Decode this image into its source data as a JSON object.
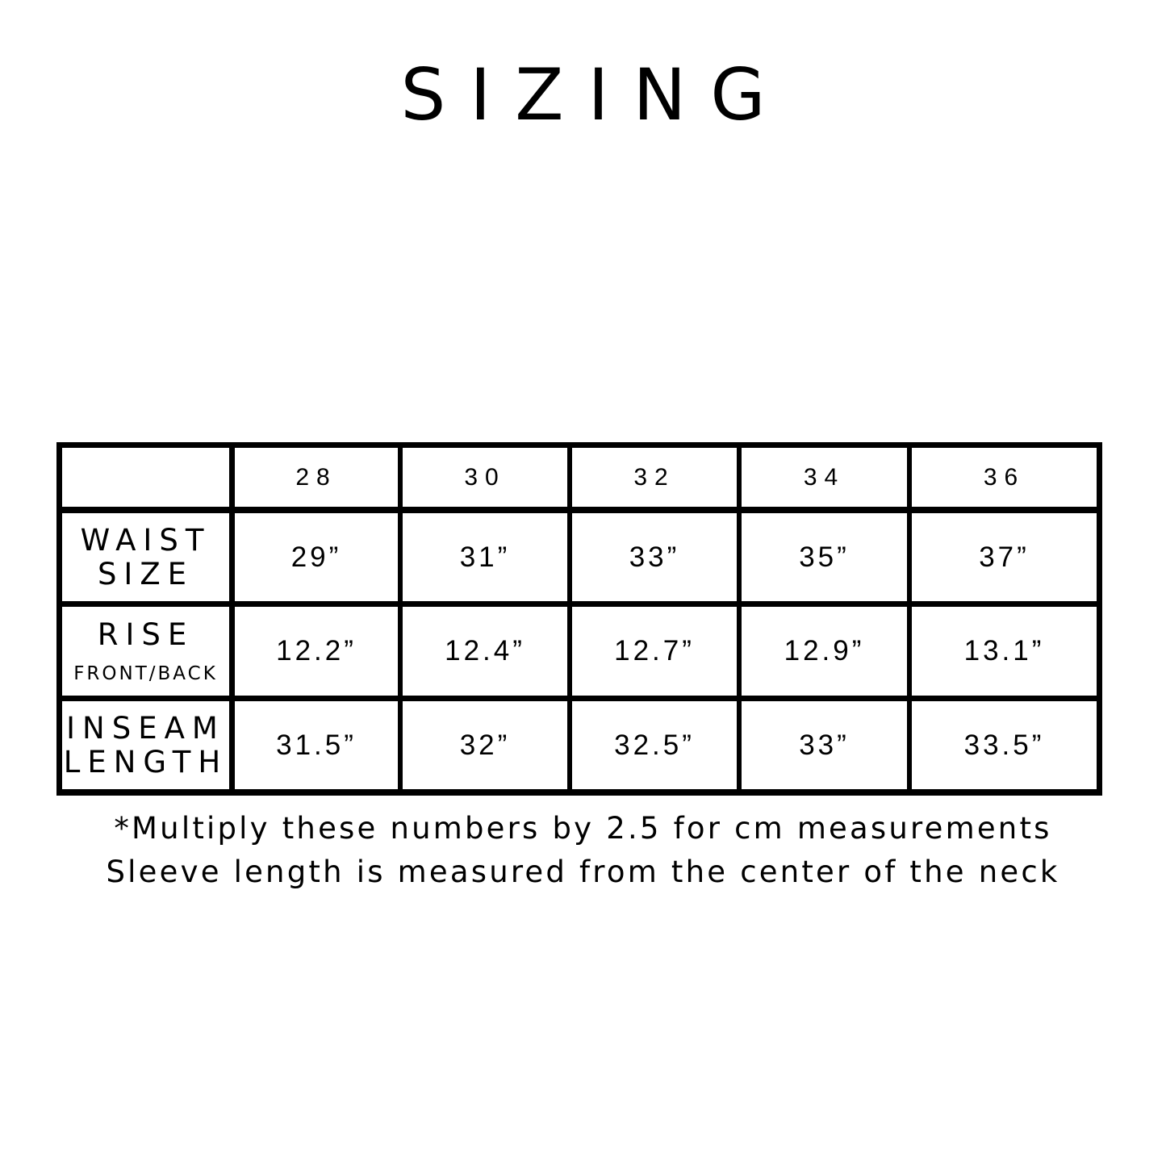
{
  "title": "SIZING",
  "table": {
    "columns": [
      "28",
      "30",
      "32",
      "34",
      "36"
    ],
    "rows": [
      {
        "label": [
          "WAIST",
          "SIZE"
        ],
        "sublabel": "",
        "values": [
          "29”",
          "31”",
          "33”",
          "35”",
          "37”"
        ]
      },
      {
        "label": [
          "RISE"
        ],
        "sublabel": "FRONT/BACK",
        "values": [
          "12.2”",
          "12.4”",
          "12.7”",
          "12.9”",
          "13.1”"
        ]
      },
      {
        "label": [
          "INSEAM",
          "LENGTH"
        ],
        "sublabel": "",
        "values": [
          "31.5”",
          "32”",
          "32.5”",
          "33”",
          "33.5”"
        ]
      }
    ]
  },
  "notes": [
    "*Multiply these numbers by 2.5 for cm measurements",
    "Sleeve length is measured from the center of the neck"
  ]
}
